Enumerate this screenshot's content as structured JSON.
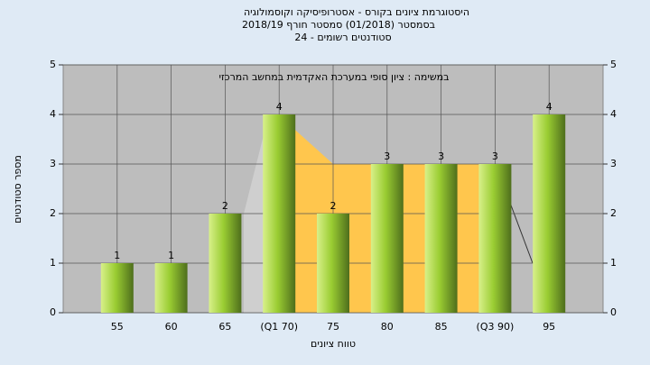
{
  "chart_data": {
    "type": "bar",
    "title": [
      "היסטוגרמת ציונים בקורס - אסטרופיסיקה וקוסמולוגיה",
      "בסמסטר  (01/2018)  סמסטר חורף  2018/19",
      "24 - סטודנטים רשומים"
    ],
    "annotation": "במשימה : ציון סופי במערכת האקדמית במחשב המרכזי",
    "x_label": "טווח ציונים",
    "y_label": "מספר סטודנטים",
    "categories": [
      "55",
      "60",
      "65",
      "(Q1 70)",
      "75",
      "80",
      "85",
      "(Q3 90)",
      "95"
    ],
    "values": [
      1,
      1,
      2,
      4,
      2,
      3,
      3,
      3,
      4
    ],
    "color": "#9acd32",
    "ylim": [
      0,
      5
    ],
    "yticks": [
      0,
      1,
      2,
      3,
      4,
      5
    ],
    "y2lim": [
      0,
      5
    ],
    "y2ticks": [
      0,
      1,
      2,
      3,
      4,
      5
    ],
    "grid": true
  }
}
